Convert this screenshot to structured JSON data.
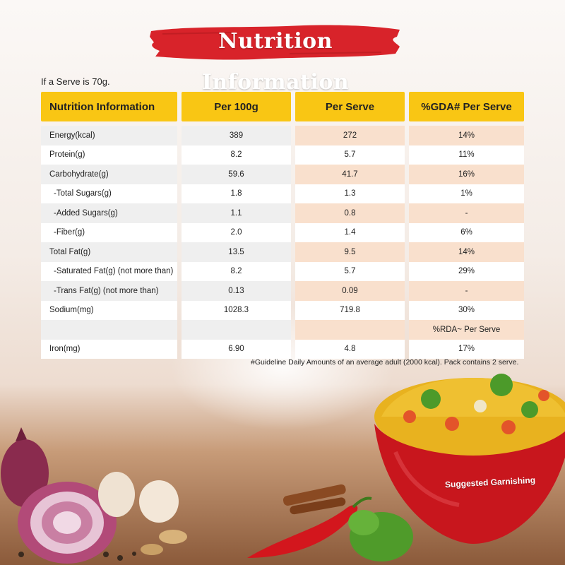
{
  "title": "Nutrition Information",
  "serve_note": "If a Serve is 70g.",
  "headers": [
    "Nutrition Information",
    "Per 100g",
    "Per Serve",
    "%GDA# Per Serve"
  ],
  "rows": [
    {
      "name": "Energy(kcal)",
      "per100": "389",
      "serve": "272",
      "gda": "14%"
    },
    {
      "name": "Protein(g)",
      "per100": "8.2",
      "serve": "5.7",
      "gda": "11%"
    },
    {
      "name": "Carbohydrate(g)",
      "per100": "59.6",
      "serve": "41.7",
      "gda": "16%"
    },
    {
      "name": "-Total Sugars(g)",
      "per100": "1.8",
      "serve": "1.3",
      "gda": "1%"
    },
    {
      "name": "-Added Sugars(g)",
      "per100": "1.1",
      "serve": "0.8",
      "gda": "-"
    },
    {
      "name": "-Fiber(g)",
      "per100": "2.0",
      "serve": "1.4",
      "gda": "6%"
    },
    {
      "name": "Total Fat(g)",
      "per100": "13.5",
      "serve": "9.5",
      "gda": "14%"
    },
    {
      "name": "-Saturated Fat(g) (not more than)",
      "per100": "8.2",
      "serve": "5.7",
      "gda": "29%"
    },
    {
      "name": "-Trans Fat(g) (not more than)",
      "per100": "0.13",
      "serve": "0.09",
      "gda": "-"
    },
    {
      "name": "Sodium(mg)",
      "per100": "1028.3",
      "serve": "719.8",
      "gda": "30%"
    },
    {
      "name": "",
      "per100": "",
      "serve": "",
      "gda": "%RDA~ Per Serve"
    },
    {
      "name": "Iron(mg)",
      "per100": "6.90",
      "serve": "4.8",
      "gda": "17%"
    }
  ],
  "footnote": "#Guideline Daily Amounts of an average adult (2000 kcal). Pack contains 2 serve.",
  "garnish_label": "Suggested Garnishing",
  "colors": {
    "header": "#f9c614",
    "brush": "#d8232a",
    "serve_tint": "#f9e0cd",
    "bowl": "#c8161d"
  }
}
